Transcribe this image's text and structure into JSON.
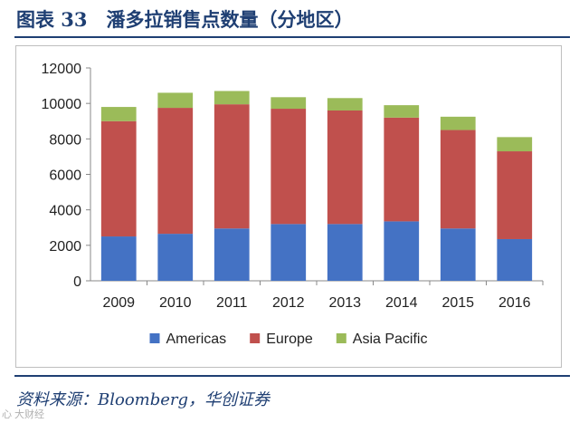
{
  "header": {
    "title": "图表 33　潘多拉销售点数量（分地区）"
  },
  "footer": {
    "source": "资料来源：Bloomberg，华创证券",
    "watermark": "心 大财经"
  },
  "chart_data": {
    "type": "bar",
    "stacked": true,
    "categories": [
      "2009",
      "2010",
      "2011",
      "2012",
      "2013",
      "2014",
      "2015",
      "2016"
    ],
    "series": [
      {
        "name": "Americas",
        "color": "#4472c4",
        "values": [
          2500,
          2650,
          2950,
          3200,
          3200,
          3350,
          2950,
          2350
        ]
      },
      {
        "name": "Europe",
        "color": "#c0504d",
        "values": [
          6500,
          7100,
          7000,
          6500,
          6400,
          5850,
          5550,
          4950
        ]
      },
      {
        "name": "Asia Pacific",
        "color": "#9bbb59",
        "values": [
          800,
          850,
          750,
          650,
          700,
          700,
          750,
          800
        ]
      }
    ],
    "ylim": [
      0,
      12000
    ],
    "yticks": [
      0,
      2000,
      4000,
      6000,
      8000,
      10000,
      12000
    ],
    "xlabel": "",
    "ylabel": "",
    "legend_position": "bottom",
    "grid": false
  }
}
